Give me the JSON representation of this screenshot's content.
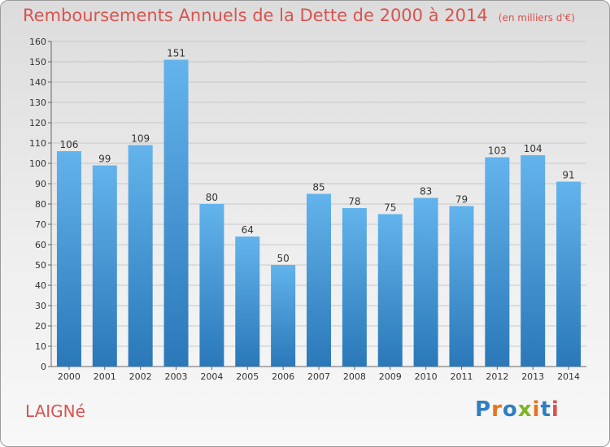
{
  "header": {
    "title": "Remboursements Annuels de la Dette de 2000 à 2014",
    "subtitle": "(en milliers d'€)"
  },
  "footer": {
    "place": "LAIGNé",
    "logo": {
      "text": "Proxiti",
      "colors": [
        "#2f7fc1",
        "#e8731f",
        "#2f7fc1",
        "#7bb526",
        "#e8731f",
        "#2f7fc1",
        "#d9534f"
      ]
    }
  },
  "colors": {
    "bar_light": "#63b3ec",
    "bar_dark": "#2a78b8",
    "grid": "#c8c8c8",
    "title": "#d9534f"
  },
  "chart_data": {
    "type": "bar",
    "categories": [
      "2000",
      "2001",
      "2002",
      "2003",
      "2004",
      "2005",
      "2006",
      "2007",
      "2008",
      "2009",
      "2010",
      "2011",
      "2012",
      "2013",
      "2014"
    ],
    "values": [
      106,
      99,
      109,
      151,
      80,
      64,
      50,
      85,
      78,
      75,
      83,
      79,
      103,
      104,
      91
    ],
    "title": "Remboursements Annuels de la Dette de 2000 à 2014",
    "subtitle": "(en milliers d'€)",
    "xlabel": "",
    "ylabel": "",
    "ylim": [
      0,
      160
    ],
    "yticks": [
      0,
      10,
      20,
      30,
      40,
      50,
      60,
      70,
      80,
      90,
      100,
      110,
      120,
      130,
      140,
      150,
      160
    ],
    "grid": true,
    "data_labels": true
  }
}
